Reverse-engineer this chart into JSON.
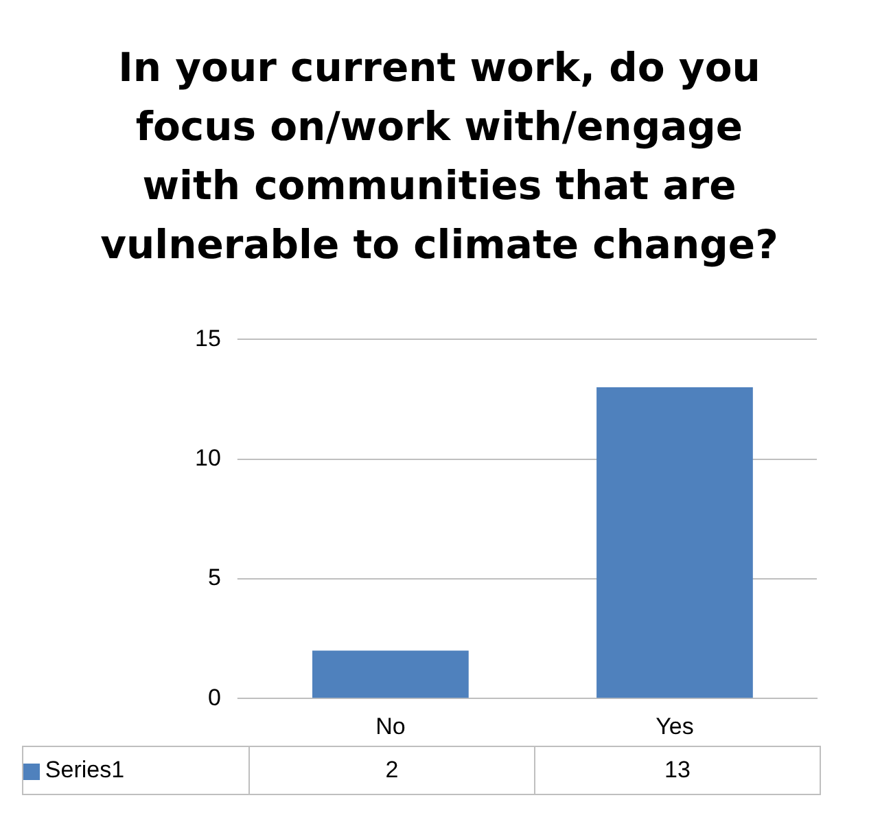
{
  "chart_data": {
    "type": "bar",
    "title": "In your current work, do you focus on/work with/engage with communities that are vulnerable to climate change?",
    "categories": [
      "No",
      "Yes"
    ],
    "series": [
      {
        "name": "Series1",
        "color": "#4f81bd",
        "values": [
          2,
          13
        ]
      }
    ],
    "ylim": [
      0,
      15
    ],
    "yticks": [
      0,
      5,
      10,
      15
    ],
    "grid": "y",
    "legend": "bottom",
    "data_labels": true
  }
}
